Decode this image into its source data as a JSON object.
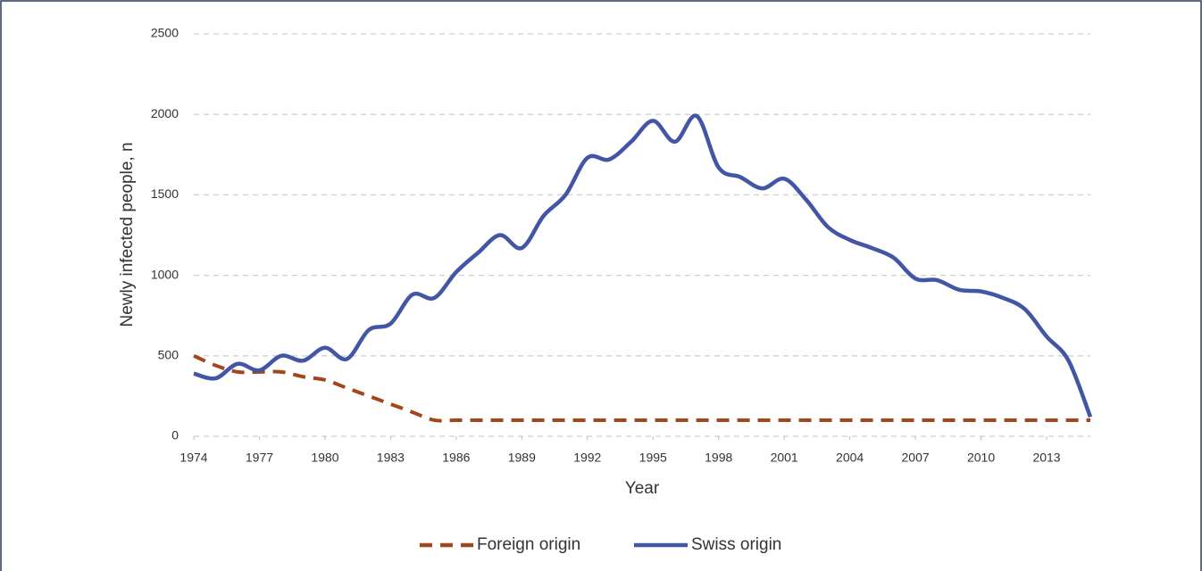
{
  "chart_data": {
    "type": "line",
    "x_label": "Year",
    "y_label": "Newly infected people, n",
    "x": [
      1974,
      1975,
      1976,
      1977,
      1978,
      1979,
      1980,
      1981,
      1982,
      1983,
      1984,
      1985,
      1986,
      1987,
      1988,
      1989,
      1990,
      1991,
      1992,
      1993,
      1994,
      1995,
      1996,
      1997,
      1998,
      1999,
      2000,
      2001,
      2002,
      2003,
      2004,
      2005,
      2006,
      2007,
      2008,
      2009,
      2010,
      2011,
      2012,
      2013,
      2014,
      2015
    ],
    "series": [
      {
        "name": "Foreign origin",
        "color": "#a3461c",
        "dashed": true,
        "values": [
          500,
          440,
          400,
          400,
          400,
          370,
          350,
          300,
          250,
          200,
          150,
          100,
          100,
          100,
          100,
          100,
          100,
          100,
          100,
          100,
          100,
          100,
          100,
          100,
          100,
          100,
          100,
          100,
          100,
          100,
          100,
          100,
          100,
          100,
          100,
          100,
          100,
          100,
          100,
          100,
          100,
          100
        ]
      },
      {
        "name": "Swiss origin",
        "color": "#4356a6",
        "dashed": false,
        "values": [
          390,
          360,
          450,
          410,
          500,
          470,
          550,
          480,
          660,
          700,
          880,
          860,
          1020,
          1140,
          1250,
          1170,
          1370,
          1500,
          1730,
          1720,
          1830,
          1960,
          1830,
          1990,
          1670,
          1610,
          1540,
          1600,
          1470,
          1300,
          1220,
          1170,
          1110,
          980,
          970,
          910,
          900,
          860,
          790,
          620,
          470,
          120
        ]
      }
    ],
    "xlim": [
      1974,
      2015
    ],
    "xticks": [
      1974,
      1977,
      1980,
      1983,
      1986,
      1989,
      1992,
      1995,
      1998,
      2001,
      2004,
      2007,
      2010,
      2013
    ],
    "ylim": [
      0,
      2500
    ],
    "yticks": [
      0,
      500,
      1000,
      1500,
      2000,
      2500
    ],
    "grid": true,
    "legend": "bottom"
  }
}
